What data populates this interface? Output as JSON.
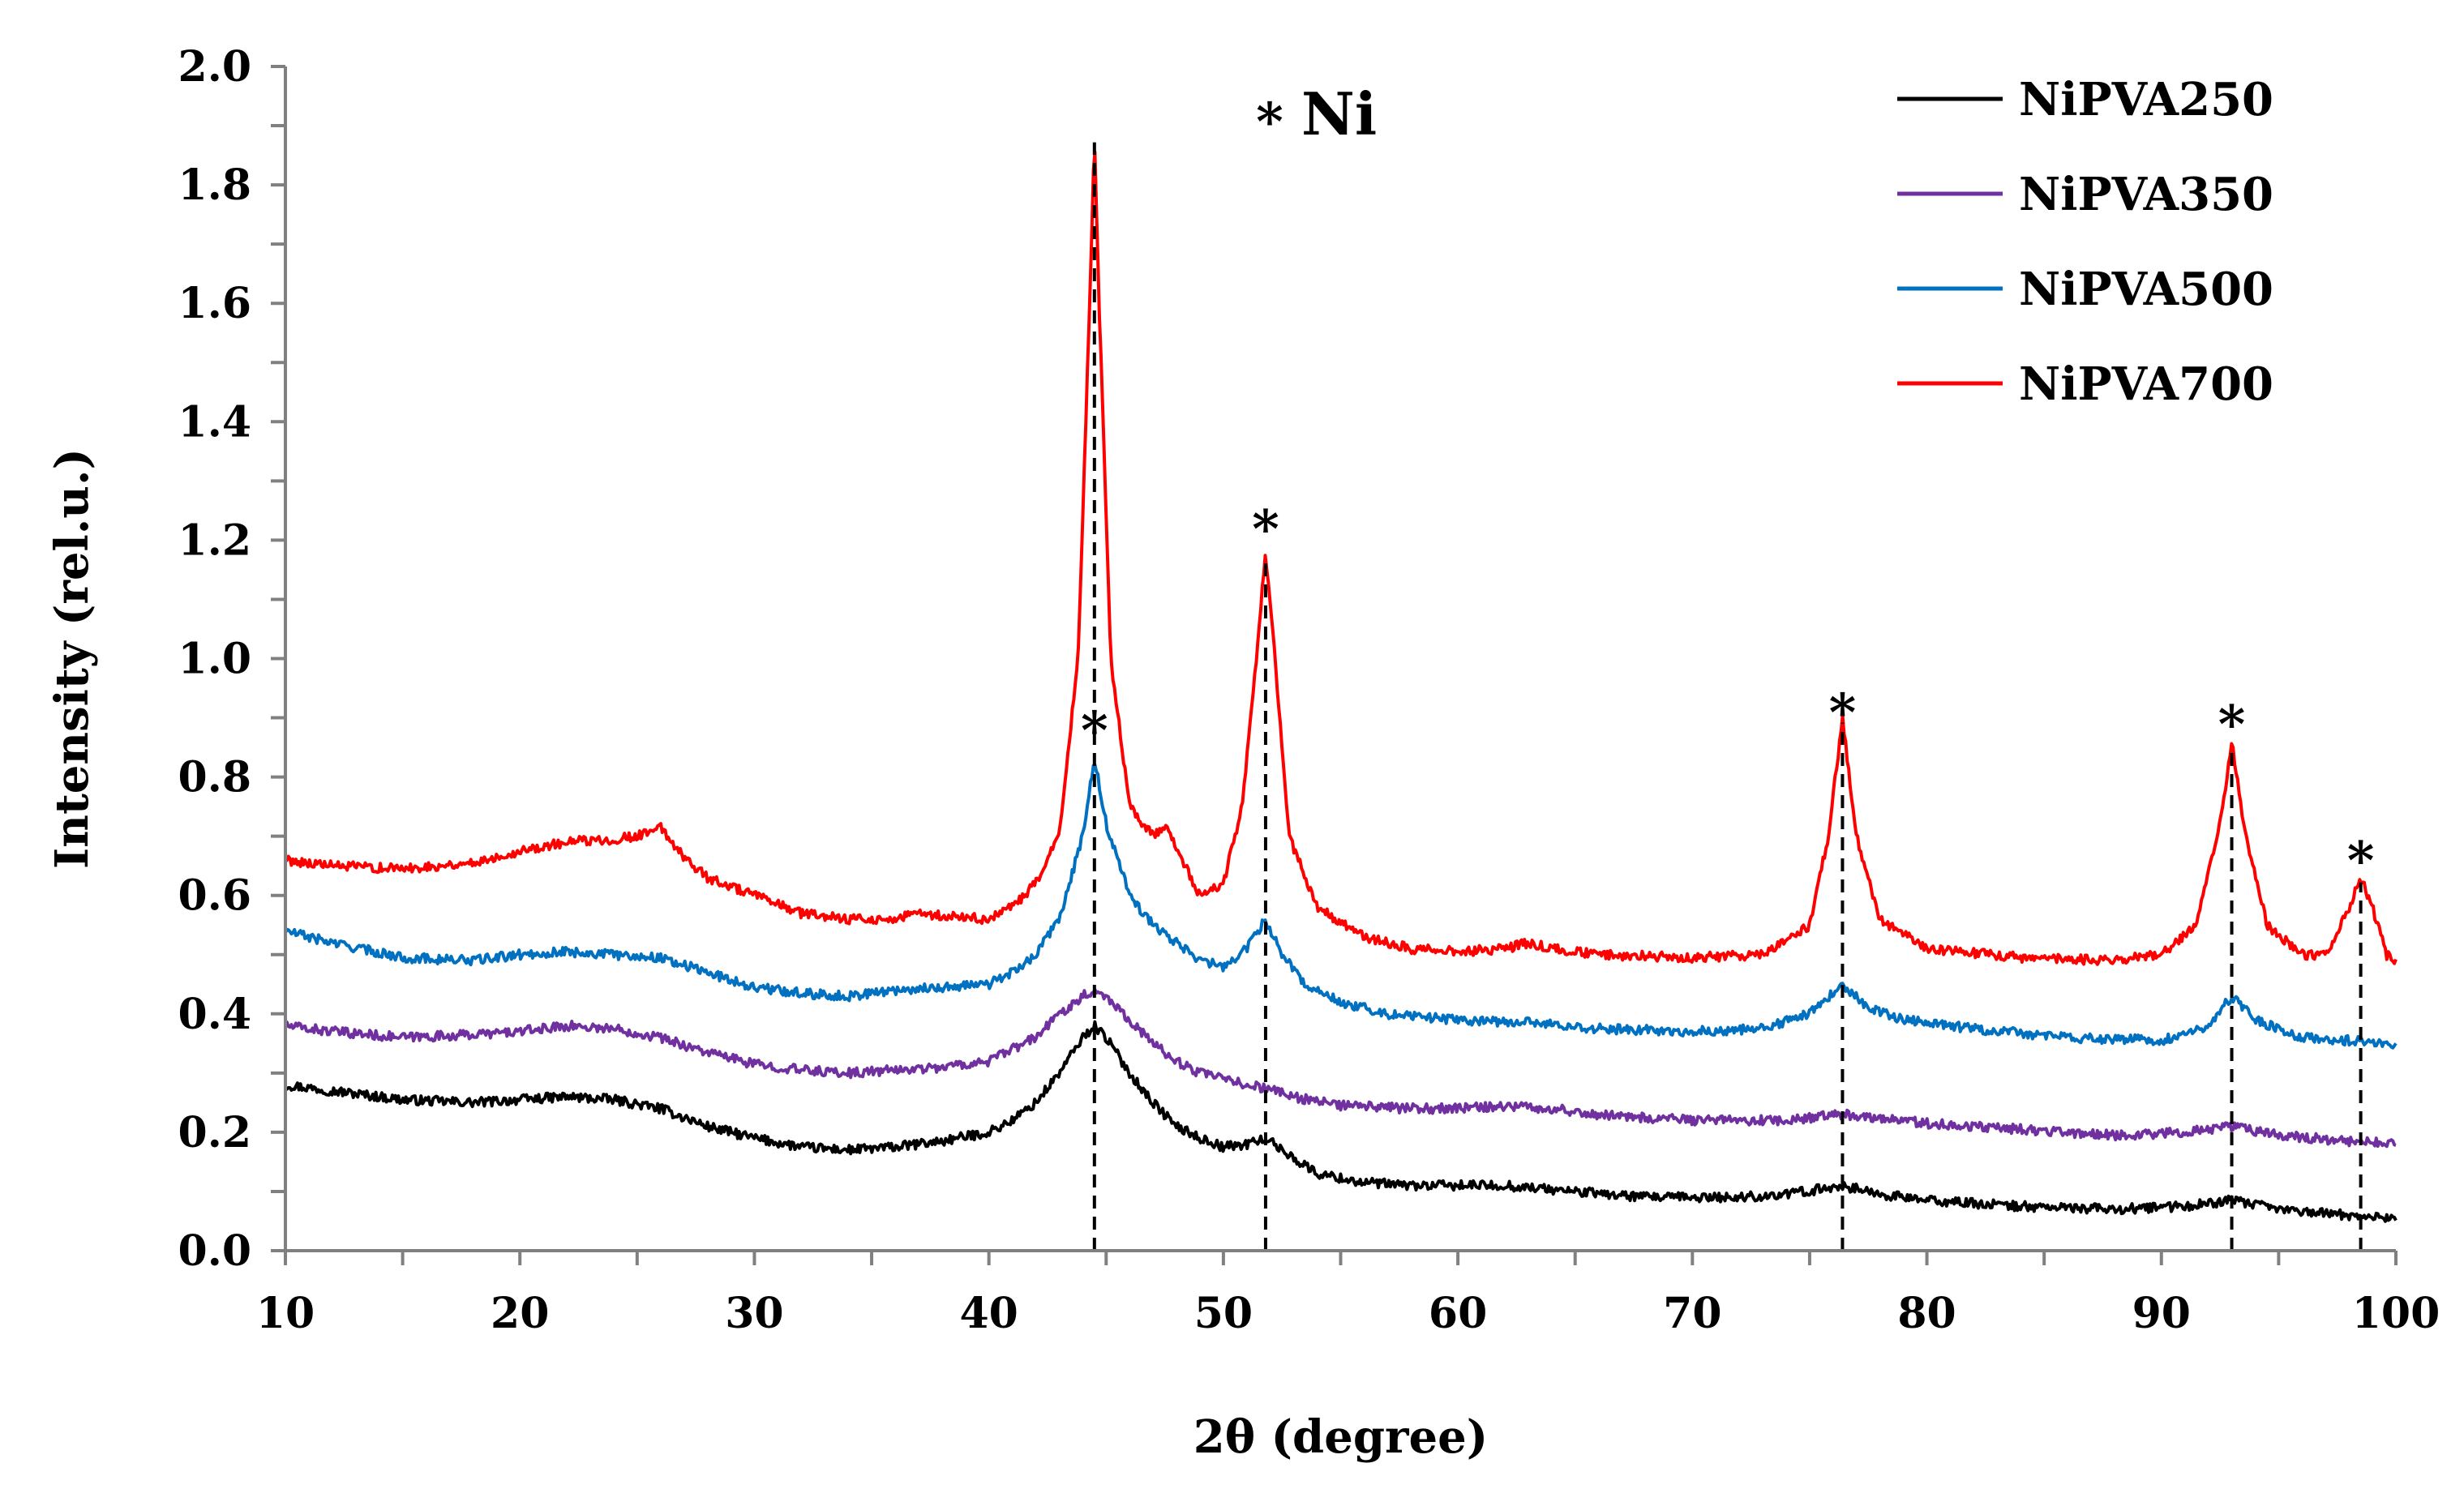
{
  "chart_data": {
    "type": "line",
    "title": "",
    "xlabel": "2θ (degree)",
    "ylabel": "Intensity (rel.u.)",
    "xlim": [
      10,
      100
    ],
    "ylim": [
      0.0,
      2.0
    ],
    "xticks": [
      10,
      20,
      30,
      40,
      50,
      60,
      70,
      80,
      90,
      100
    ],
    "yticks": [
      "0.0",
      "0.2",
      "0.4",
      "0.6",
      "0.8",
      "1.0",
      "1.2",
      "1.4",
      "1.6",
      "1.8",
      "2.0"
    ],
    "grid": false,
    "legend_position": "top-right",
    "annotation_label": "Ni",
    "annotation_marker": "*",
    "ni_peaks": [
      44.5,
      51.8,
      76.4,
      93.0,
      98.5
    ],
    "series": [
      {
        "name": "NiPVA250",
        "color": "#000000",
        "points": [
          [
            10,
            0.28
          ],
          [
            12,
            0.27
          ],
          [
            15,
            0.255
          ],
          [
            18,
            0.25
          ],
          [
            20,
            0.255
          ],
          [
            22,
            0.26
          ],
          [
            24,
            0.255
          ],
          [
            26,
            0.24
          ],
          [
            28,
            0.21
          ],
          [
            30,
            0.19
          ],
          [
            32,
            0.175
          ],
          [
            34,
            0.17
          ],
          [
            36,
            0.175
          ],
          [
            38,
            0.185
          ],
          [
            40,
            0.2
          ],
          [
            41,
            0.22
          ],
          [
            42,
            0.25
          ],
          [
            43,
            0.3
          ],
          [
            44,
            0.36
          ],
          [
            44.5,
            0.38
          ],
          [
            45,
            0.36
          ],
          [
            46,
            0.3
          ],
          [
            47,
            0.25
          ],
          [
            48,
            0.21
          ],
          [
            49,
            0.19
          ],
          [
            50,
            0.175
          ],
          [
            51,
            0.18
          ],
          [
            51.8,
            0.19
          ],
          [
            52.5,
            0.17
          ],
          [
            54,
            0.13
          ],
          [
            56,
            0.115
          ],
          [
            58,
            0.11
          ],
          [
            60,
            0.11
          ],
          [
            62,
            0.11
          ],
          [
            65,
            0.1
          ],
          [
            68,
            0.09
          ],
          [
            70,
            0.09
          ],
          [
            72,
            0.09
          ],
          [
            74,
            0.095
          ],
          [
            76.4,
            0.11
          ],
          [
            78,
            0.095
          ],
          [
            80,
            0.085
          ],
          [
            84,
            0.075
          ],
          [
            88,
            0.07
          ],
          [
            91,
            0.075
          ],
          [
            93,
            0.085
          ],
          [
            95,
            0.07
          ],
          [
            98,
            0.06
          ],
          [
            100,
            0.055
          ]
        ]
      },
      {
        "name": "NiPVA350",
        "color": "#7030a0",
        "points": [
          [
            10,
            0.38
          ],
          [
            12,
            0.37
          ],
          [
            15,
            0.36
          ],
          [
            18,
            0.365
          ],
          [
            20,
            0.37
          ],
          [
            22,
            0.38
          ],
          [
            24,
            0.375
          ],
          [
            26,
            0.36
          ],
          [
            28,
            0.335
          ],
          [
            30,
            0.315
          ],
          [
            32,
            0.305
          ],
          [
            34,
            0.3
          ],
          [
            36,
            0.305
          ],
          [
            38,
            0.31
          ],
          [
            40,
            0.32
          ],
          [
            42,
            0.36
          ],
          [
            43,
            0.4
          ],
          [
            44,
            0.43
          ],
          [
            44.5,
            0.44
          ],
          [
            45,
            0.43
          ],
          [
            46,
            0.39
          ],
          [
            47,
            0.35
          ],
          [
            48,
            0.32
          ],
          [
            49,
            0.3
          ],
          [
            50,
            0.29
          ],
          [
            51,
            0.28
          ],
          [
            51.8,
            0.275
          ],
          [
            53,
            0.26
          ],
          [
            55,
            0.245
          ],
          [
            58,
            0.24
          ],
          [
            60,
            0.24
          ],
          [
            62,
            0.245
          ],
          [
            64,
            0.24
          ],
          [
            66,
            0.23
          ],
          [
            70,
            0.22
          ],
          [
            74,
            0.22
          ],
          [
            76.4,
            0.23
          ],
          [
            78,
            0.225
          ],
          [
            80,
            0.215
          ],
          [
            84,
            0.205
          ],
          [
            88,
            0.195
          ],
          [
            91,
            0.2
          ],
          [
            93,
            0.21
          ],
          [
            95,
            0.195
          ],
          [
            98,
            0.185
          ],
          [
            100,
            0.18
          ]
        ]
      },
      {
        "name": "NiPVA500",
        "color": "#0070c0",
        "points": [
          [
            10,
            0.54
          ],
          [
            12,
            0.52
          ],
          [
            15,
            0.495
          ],
          [
            18,
            0.49
          ],
          [
            20,
            0.5
          ],
          [
            22,
            0.505
          ],
          [
            24,
            0.5
          ],
          [
            26,
            0.495
          ],
          [
            28,
            0.47
          ],
          [
            30,
            0.445
          ],
          [
            32,
            0.435
          ],
          [
            34,
            0.43
          ],
          [
            36,
            0.44
          ],
          [
            38,
            0.445
          ],
          [
            40,
            0.45
          ],
          [
            41,
            0.47
          ],
          [
            42,
            0.5
          ],
          [
            43,
            0.56
          ],
          [
            44,
            0.7
          ],
          [
            44.5,
            0.83
          ],
          [
            45,
            0.72
          ],
          [
            46,
            0.6
          ],
          [
            47,
            0.55
          ],
          [
            48,
            0.52
          ],
          [
            49,
            0.49
          ],
          [
            50,
            0.48
          ],
          [
            51,
            0.51
          ],
          [
            51.8,
            0.56
          ],
          [
            52.5,
            0.5
          ],
          [
            53.5,
            0.45
          ],
          [
            55,
            0.42
          ],
          [
            57,
            0.4
          ],
          [
            60,
            0.39
          ],
          [
            63,
            0.385
          ],
          [
            66,
            0.375
          ],
          [
            70,
            0.37
          ],
          [
            73,
            0.375
          ],
          [
            75,
            0.4
          ],
          [
            76.4,
            0.45
          ],
          [
            77.5,
            0.41
          ],
          [
            79,
            0.39
          ],
          [
            82,
            0.375
          ],
          [
            86,
            0.36
          ],
          [
            90,
            0.355
          ],
          [
            92,
            0.38
          ],
          [
            93,
            0.43
          ],
          [
            94,
            0.39
          ],
          [
            96,
            0.36
          ],
          [
            98,
            0.355
          ],
          [
            100,
            0.35
          ]
        ]
      },
      {
        "name": "NiPVA700",
        "color": "#ff0000",
        "points": [
          [
            10,
            0.66
          ],
          [
            12,
            0.65
          ],
          [
            15,
            0.645
          ],
          [
            18,
            0.655
          ],
          [
            20,
            0.675
          ],
          [
            22,
            0.69
          ],
          [
            24,
            0.695
          ],
          [
            25,
            0.7
          ],
          [
            26,
            0.715
          ],
          [
            27,
            0.665
          ],
          [
            28,
            0.63
          ],
          [
            30,
            0.6
          ],
          [
            32,
            0.57
          ],
          [
            34,
            0.56
          ],
          [
            36,
            0.56
          ],
          [
            37,
            0.57
          ],
          [
            38,
            0.565
          ],
          [
            40,
            0.56
          ],
          [
            41,
            0.58
          ],
          [
            42,
            0.62
          ],
          [
            43,
            0.7
          ],
          [
            43.8,
            1.0
          ],
          [
            44.3,
            1.6
          ],
          [
            44.5,
            1.88
          ],
          [
            44.7,
            1.6
          ],
          [
            45.2,
            1.0
          ],
          [
            46,
            0.75
          ],
          [
            47,
            0.7
          ],
          [
            47.5,
            0.72
          ],
          [
            48,
            0.68
          ],
          [
            49,
            0.6
          ],
          [
            50,
            0.62
          ],
          [
            50.8,
            0.75
          ],
          [
            51.4,
            1.0
          ],
          [
            51.8,
            1.18
          ],
          [
            52.2,
            1.0
          ],
          [
            52.8,
            0.7
          ],
          [
            54,
            0.58
          ],
          [
            56,
            0.53
          ],
          [
            58,
            0.51
          ],
          [
            60,
            0.505
          ],
          [
            62,
            0.51
          ],
          [
            63,
            0.52
          ],
          [
            64,
            0.51
          ],
          [
            66,
            0.5
          ],
          [
            70,
            0.495
          ],
          [
            73,
            0.5
          ],
          [
            75,
            0.55
          ],
          [
            75.8,
            0.7
          ],
          [
            76.4,
            0.9
          ],
          [
            77,
            0.7
          ],
          [
            78,
            0.56
          ],
          [
            80,
            0.51
          ],
          [
            84,
            0.495
          ],
          [
            88,
            0.49
          ],
          [
            90,
            0.5
          ],
          [
            91.5,
            0.55
          ],
          [
            92.5,
            0.72
          ],
          [
            93,
            0.86
          ],
          [
            93.5,
            0.72
          ],
          [
            94.5,
            0.55
          ],
          [
            96,
            0.5
          ],
          [
            97,
            0.5
          ],
          [
            98,
            0.58
          ],
          [
            98.5,
            0.63
          ],
          [
            99,
            0.58
          ],
          [
            99.6,
            0.5
          ],
          [
            100,
            0.49
          ]
        ]
      }
    ]
  }
}
